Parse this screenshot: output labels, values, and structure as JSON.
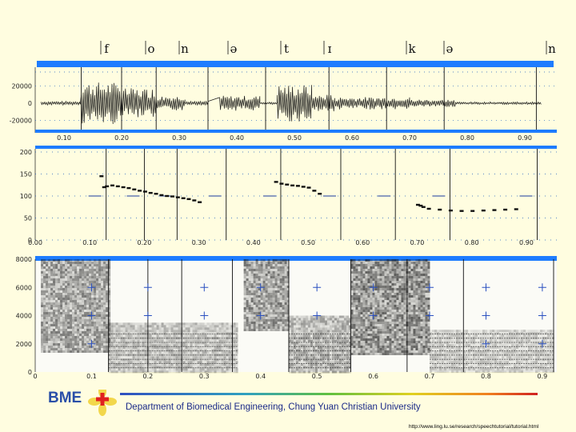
{
  "chart_data": [
    {
      "type": "line",
      "panel": "waveform",
      "y_tick_labels": [
        "20000",
        "0",
        "-20000"
      ],
      "x_tick_labels": [
        "0.10",
        "0.20",
        "0.30",
        "0.40",
        "0.50",
        "0.60",
        "0.70",
        "0.80",
        "0.90"
      ],
      "ylim": [
        -25000,
        25000
      ],
      "xlim": [
        0.05,
        0.95
      ],
      "segments": [
        {
          "x0": 0.06,
          "x1": 0.13,
          "amp": 1500
        },
        {
          "x0": 0.13,
          "x1": 0.2,
          "amp": 17000
        },
        {
          "x0": 0.2,
          "x1": 0.26,
          "amp": 12000
        },
        {
          "x0": 0.26,
          "x1": 0.31,
          "amp": 6000
        },
        {
          "x0": 0.31,
          "x1": 0.35,
          "amp": 1500
        },
        {
          "x0": 0.37,
          "x1": 0.44,
          "amp": 6000
        },
        {
          "x0": 0.44,
          "x1": 0.47,
          "amp": 1000
        },
        {
          "x0": 0.47,
          "x1": 0.53,
          "amp": 15000
        },
        {
          "x0": 0.53,
          "x1": 0.57,
          "amp": 7000
        },
        {
          "x0": 0.57,
          "x1": 0.7,
          "amp": 5000
        },
        {
          "x0": 0.7,
          "x1": 0.78,
          "amp": 3000
        },
        {
          "x0": 0.78,
          "x1": 0.93,
          "amp": 1000
        }
      ]
    },
    {
      "type": "scatter",
      "panel": "pitch",
      "y_tick_labels": [
        "200",
        "150",
        "100",
        "50",
        "0"
      ],
      "x_tick_labels": [
        "0.00",
        "0.10",
        "0.20",
        "0.30",
        "0.40",
        "0.50",
        "0.60",
        "0.70",
        "0.80",
        "0.90"
      ],
      "ylim": [
        0,
        200
      ],
      "xlim": [
        0.0,
        0.95
      ],
      "series": [
        {
          "x": [
            0.12,
            0.125,
            0.13,
            0.14,
            0.15,
            0.16,
            0.17,
            0.18,
            0.19,
            0.2,
            0.21,
            0.22,
            0.23,
            0.24,
            0.25,
            0.26,
            0.27,
            0.28,
            0.29,
            0.3
          ],
          "y": [
            145,
            120,
            122,
            124,
            122,
            120,
            118,
            115,
            112,
            110,
            107,
            105,
            102,
            100,
            99,
            97,
            95,
            93,
            90,
            86
          ]
        },
        {
          "x": [
            0.44,
            0.45,
            0.46,
            0.47,
            0.48,
            0.49,
            0.5,
            0.51,
            0.52
          ],
          "y": [
            132,
            128,
            126,
            124,
            123,
            121,
            119,
            112,
            105
          ]
        },
        {
          "x": [
            0.7,
            0.705,
            0.71,
            0.72,
            0.74,
            0.76,
            0.78,
            0.8,
            0.82,
            0.84,
            0.86,
            0.88
          ],
          "y": [
            80,
            78,
            75,
            71,
            69,
            67,
            66,
            66,
            67,
            68,
            69,
            70
          ]
        }
      ]
    },
    {
      "type": "heatmap",
      "panel": "spectrogram",
      "y_tick_labels": [
        "8000",
        "6000",
        "4000",
        "2000",
        "0"
      ],
      "x_tick_labels": [
        "0",
        "0.1",
        "0.2",
        "0.3",
        "0.4",
        "0.5",
        "0.6",
        "0.7",
        "0.8",
        "0.9"
      ],
      "ylim": [
        0,
        8000
      ],
      "xlim": [
        0.0,
        0.92
      ],
      "energy_regions": [
        {
          "x0": 0.01,
          "x1": 0.13,
          "f0": 1500,
          "f1": 8000,
          "level": 0.7
        },
        {
          "x0": 0.37,
          "x1": 0.45,
          "f0": 3000,
          "f1": 8000,
          "level": 0.75
        },
        {
          "x0": 0.56,
          "x1": 0.7,
          "f0": 1200,
          "f1": 8000,
          "level": 0.85
        },
        {
          "x0": 0.13,
          "x1": 0.36,
          "f0": 0,
          "f1": 3500,
          "level": 0.45
        },
        {
          "x0": 0.45,
          "x1": 0.56,
          "f0": 0,
          "f1": 4000,
          "level": 0.55
        },
        {
          "x0": 0.7,
          "x1": 0.92,
          "f0": 0,
          "f1": 3000,
          "level": 0.35
        }
      ]
    }
  ],
  "phonemes": [
    "f",
    "o",
    "n",
    "ə",
    "t",
    "ɪ",
    "k",
    "ə",
    "n"
  ],
  "footer": {
    "department": "Department of Biomedical Engineering, Chung Yuan Christian University",
    "url": "http://www.ling.lu.se/research/speechtutorial/tutorial.html",
    "logo_text": "BME"
  },
  "colors": {
    "background": "#fffde0",
    "segment_bar": "#1e7cff",
    "grid": "#1e5fbf",
    "tick_text": "#222222",
    "footer_text": "#1a2a88",
    "logo_cross": "#e02020",
    "logo_petals": "#f0d030"
  }
}
